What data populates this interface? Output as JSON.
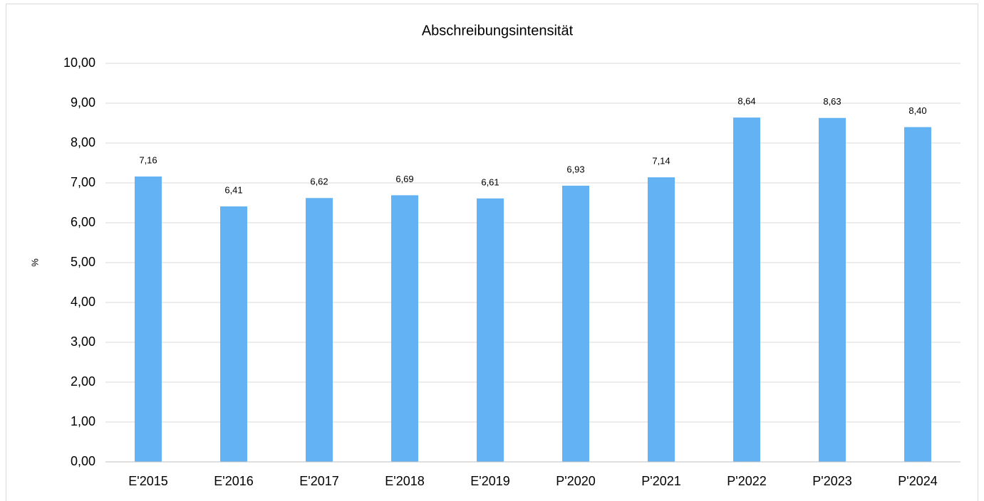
{
  "chart_data": {
    "type": "bar",
    "title": "Abschreibungsintensität",
    "y_label": "%",
    "categories": [
      "E'2015",
      "E'2016",
      "E'2017",
      "E'2018",
      "E'2019",
      "P'2020",
      "P'2021",
      "P'2022",
      "P'2023",
      "P'2024"
    ],
    "values": [
      7.16,
      6.41,
      6.62,
      6.69,
      6.61,
      6.93,
      7.14,
      8.64,
      8.63,
      8.4
    ],
    "value_labels": [
      "7,16",
      "6,41",
      "6,62",
      "6,69",
      "6,61",
      "6,93",
      "7,14",
      "8,64",
      "8,63",
      "8,40"
    ],
    "color": "#63b3f4",
    "ylim": [
      0,
      10
    ],
    "yticks": [
      {
        "value": 0,
        "label": "0,00"
      },
      {
        "value": 1,
        "label": "1,00"
      },
      {
        "value": 2,
        "label": "2,00"
      },
      {
        "value": 3,
        "label": "3,00"
      },
      {
        "value": 4,
        "label": "4,00"
      },
      {
        "value": 5,
        "label": "5,00"
      },
      {
        "value": 6,
        "label": "6,00"
      },
      {
        "value": 7,
        "label": "7,00"
      },
      {
        "value": 8,
        "label": "8,00"
      },
      {
        "value": 9,
        "label": "9,00"
      },
      {
        "value": 10,
        "label": "10,00"
      }
    ],
    "grid": true
  }
}
